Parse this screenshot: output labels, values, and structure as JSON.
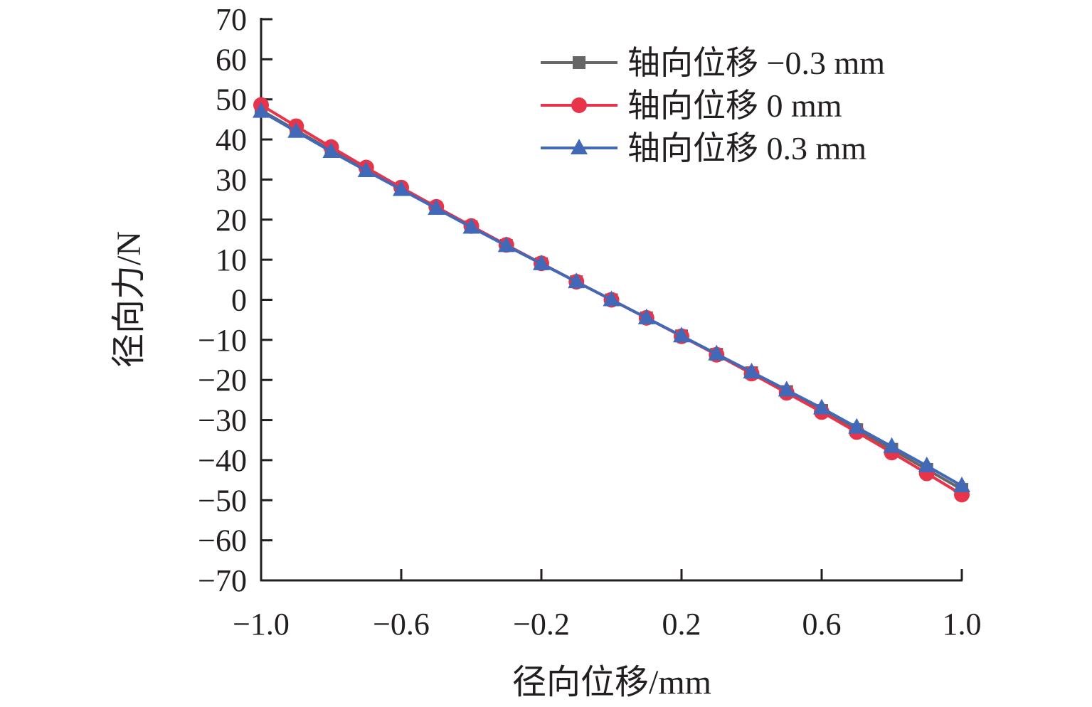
{
  "chart_data": {
    "type": "line",
    "title": "",
    "xlabel": "径向位移/mm",
    "ylabel": "径向力/N",
    "xlim": [
      -1.0,
      1.0
    ],
    "ylim": [
      -70,
      70
    ],
    "xticks": [
      -1.0,
      -0.6,
      -0.2,
      0.2,
      0.6,
      1.0
    ],
    "xtick_labels": [
      "−1.0",
      "−0.6",
      "−0.2",
      "0.2",
      "0.6",
      "1.0"
    ],
    "yticks": [
      70,
      60,
      50,
      40,
      30,
      20,
      10,
      0,
      -10,
      -20,
      -30,
      -40,
      -50,
      -60,
      -70
    ],
    "ytick_labels": [
      "70",
      "60",
      "50",
      "40",
      "30",
      "20",
      "10",
      "0",
      "−10",
      "−20",
      "−30",
      "−40",
      "−50",
      "−60",
      "−70"
    ],
    "grid": false,
    "legend_position": "top-right",
    "x": [
      -1.0,
      -0.9,
      -0.8,
      -0.7,
      -0.6,
      -0.5,
      -0.4,
      -0.3,
      -0.2,
      -0.1,
      0.0,
      0.1,
      0.2,
      0.3,
      0.4,
      0.5,
      0.6,
      0.7,
      0.8,
      0.9,
      1.0
    ],
    "series": [
      {
        "name": "轴向位移 −0.3 mm",
        "color": "#666666",
        "marker": "square",
        "values": [
          47.3,
          42.3,
          37.3,
          32.4,
          27.6,
          22.9,
          18.2,
          13.6,
          9.0,
          4.5,
          0.0,
          -4.5,
          -9.0,
          -13.6,
          -18.2,
          -22.9,
          -27.6,
          -32.4,
          -37.3,
          -42.3,
          -47.3
        ]
      },
      {
        "name": "轴向位移 0 mm",
        "color": "#e8344a",
        "marker": "circle",
        "values": [
          48.6,
          43.3,
          38.1,
          33.0,
          28.0,
          23.2,
          18.4,
          13.7,
          9.1,
          4.5,
          0.0,
          -4.5,
          -9.1,
          -13.7,
          -18.4,
          -23.2,
          -28.0,
          -33.0,
          -38.1,
          -43.3,
          -48.6
        ]
      },
      {
        "name": "轴向位移 0.3 mm",
        "color": "#4169b8",
        "marker": "triangle",
        "values": [
          47.0,
          42.0,
          37.0,
          32.2,
          27.5,
          22.8,
          18.1,
          13.5,
          9.0,
          4.5,
          0.0,
          -4.5,
          -9.0,
          -13.5,
          -18.0,
          -22.5,
          -27.0,
          -31.8,
          -36.6,
          -41.4,
          -46.4
        ]
      }
    ]
  }
}
